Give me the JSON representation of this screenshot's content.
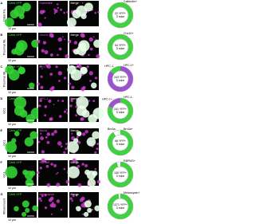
{
  "rows": [
    {
      "letter": "A",
      "region": "Distal INL",
      "channels": [
        "Cdh6-YFP",
        "Calbindin",
        "Merge"
      ],
      "scale": "10 µm",
      "donut": {
        "center": [
          "22 YFP+",
          "3 mice"
        ],
        "segments": [
          {
            "label": "Calbindin+",
            "value": 100,
            "color": "#3fd23f"
          }
        ]
      }
    },
    {
      "letter": "B",
      "region": "Proximal INL",
      "channels": [
        "Cdh6-YFP",
        "Chx10",
        "Merge"
      ],
      "scale": "10 µm",
      "donut": {
        "center": [
          "54 YFP+",
          "3 mice"
        ],
        "segments": [
          {
            "label": "Chx10+",
            "value": 100,
            "color": "#3fd23f"
          }
        ]
      }
    },
    {
      "letter": "C",
      "region": "Proximal INL",
      "channels": [
        "Cdh6-YFP",
        "HPC-1",
        "Merge"
      ],
      "scale": "10 µm",
      "donut": {
        "center": [
          "243 YFP+",
          "3 mice"
        ],
        "segments": [
          {
            "label": "HPC-1+",
            "value": 85,
            "color": "#9a52cf"
          },
          {
            "label": "HPC-1-",
            "value": 15,
            "color": "#3fd23f"
          }
        ]
      }
    },
    {
      "letter": "D",
      "region": "GCL",
      "channels": [
        "Cdh6-YFP",
        "HPC-1",
        "Merge"
      ],
      "scale": "10 µm",
      "donut": {
        "center": [
          "241 YFP+",
          "3 mice"
        ],
        "segments": [
          {
            "label": "HPC-1-",
            "value": 80,
            "color": "#3fd23f"
          },
          {
            "label": "HPC-1+",
            "value": 20,
            "color": "#9a52cf"
          }
        ]
      }
    },
    {
      "letter": "E",
      "region": "GCL",
      "channels": [
        "Cdh6-YFP",
        "Brn3a",
        "Merge"
      ],
      "scale": "10 µm",
      "donut": {
        "center": [
          "98 YFP+",
          "3 mice"
        ],
        "segments": [
          {
            "label": "Brn3a+",
            "value": 90,
            "color": "#3fd23f"
          },
          {
            "label": "Brn3a-",
            "value": 10,
            "color": "#ffffff"
          }
        ]
      }
    },
    {
      "letter": "F",
      "region": "GCL",
      "channels": [
        "Cdh6-YFP",
        "RBPMS",
        "Merge"
      ],
      "scale": "10 µm",
      "donut": {
        "center": [
          "150 YFP+",
          "3 mice"
        ],
        "segments": [
          {
            "label": "RBPMS+",
            "value": 95,
            "color": "#3fd23f"
          },
          {
            "value": 5,
            "color": "#ffffff"
          }
        ]
      }
    },
    {
      "letter": "G",
      "region": "Wholemount",
      "channels": [
        "Cdh6-YFP",
        "Melanopsin",
        "Merge"
      ],
      "scale": "10 µm",
      "donut": {
        "center": [
          "1371 YFP+",
          "3 mice"
        ],
        "segments": [
          {
            "label": "Melanopsin+",
            "value": 97,
            "color": "#3fd23f"
          },
          {
            "value": 3,
            "color": "#ffffff"
          }
        ]
      }
    }
  ]
}
